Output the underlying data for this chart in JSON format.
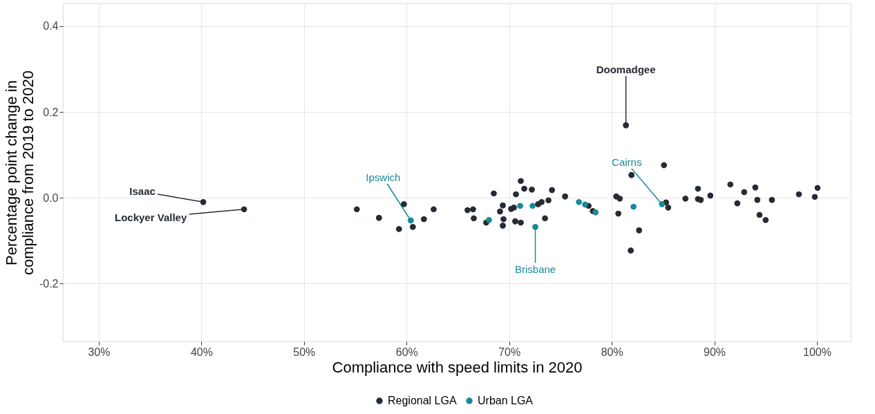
{
  "chart_data": {
    "type": "scatter",
    "xlabel": "Compliance with speed limits in 2020",
    "ylabel": "Percentage point change in compliance from 2019 to 2020",
    "xlim": [
      26.5,
      103.3
    ],
    "ylim": [
      -0.335,
      0.453
    ],
    "xticks": [
      {
        "value": 30,
        "label": "30%"
      },
      {
        "value": 40,
        "label": "40%"
      },
      {
        "value": 50,
        "label": "50%"
      },
      {
        "value": 60,
        "label": "60%"
      },
      {
        "value": 70,
        "label": "70%"
      },
      {
        "value": 80,
        "label": "80%"
      },
      {
        "value": 90,
        "label": "90%"
      },
      {
        "value": 100,
        "label": "100%"
      }
    ],
    "yticks": [
      -0.2,
      {
        "value": 0,
        "label": "0.0"
      },
      0.2,
      0.4
    ],
    "grid": true,
    "legend": "bottom",
    "marker": "circle",
    "series": [
      {
        "name": "Regional LGA",
        "color": "#252c35",
        "x": [
          40.18,
          44.16,
          55.15,
          57.31,
          59.26,
          59.74,
          60.61,
          61.69,
          62.64,
          65.94,
          66.48,
          66.55,
          67.76,
          68.5,
          69.11,
          69.38,
          69.45,
          69.38,
          70.19,
          70.46,
          70.66,
          70.59,
          71.13,
          71.13,
          71.47,
          72.21,
          72.82,
          73.16,
          73.83,
          73.49,
          74.17,
          75.45,
          77.74,
          78.15,
          80.44,
          80.78,
          80.64,
          81.92,
          82.66,
          81.85,
          81.38,
          85.09,
          85.29,
          85.5,
          87.18,
          88.4,
          88.4,
          88.67,
          89.61,
          91.56,
          92.24,
          92.91,
          93.99,
          94.19,
          94.4,
          95.0,
          95.61,
          98.24,
          99.79,
          100.06
        ],
        "values": [
          -0.01,
          -0.027,
          -0.027,
          -0.047,
          -0.073,
          -0.015,
          -0.068,
          -0.05,
          -0.027,
          -0.029,
          -0.027,
          -0.048,
          -0.058,
          0.01,
          -0.032,
          -0.018,
          -0.05,
          -0.065,
          -0.026,
          -0.023,
          0.008,
          -0.055,
          -0.058,
          0.039,
          0.021,
          0.019,
          -0.015,
          -0.01,
          -0.006,
          -0.048,
          0.018,
          0.003,
          -0.019,
          -0.031,
          0.003,
          -0.002,
          -0.037,
          0.053,
          -0.076,
          -0.123,
          0.169,
          0.076,
          -0.011,
          -0.023,
          -0.002,
          0.021,
          -0.003,
          -0.005,
          0.005,
          0.031,
          -0.013,
          0.013,
          0.024,
          -0.005,
          -0.04,
          -0.052,
          -0.005,
          0.008,
          0.002,
          0.023
        ]
      },
      {
        "name": "Urban LGA",
        "color": "#1a8a99",
        "x": [
          60.41,
          68.03,
          71.07,
          72.28,
          72.55,
          76.8,
          77.4,
          78.42,
          82.12,
          84.89
        ],
        "values": [
          -0.053,
          -0.052,
          -0.019,
          -0.019,
          -0.068,
          -0.01,
          -0.016,
          -0.034,
          -0.021,
          -0.015
        ]
      }
    ],
    "annotations": [
      {
        "text": "Isaac",
        "x": 40.18,
        "y": -0.01
      },
      {
        "text": "Lockyer Valley",
        "x": 44.16,
        "y": -0.027
      },
      {
        "text": "Doomadgee",
        "x": 81.38,
        "y": 0.169
      },
      {
        "text": "Ipswich",
        "x": 60.41,
        "y": -0.053
      },
      {
        "text": "Brisbane",
        "x": 72.55,
        "y": -0.068
      },
      {
        "text": "Cairns",
        "x": 84.89,
        "y": -0.015
      }
    ]
  }
}
